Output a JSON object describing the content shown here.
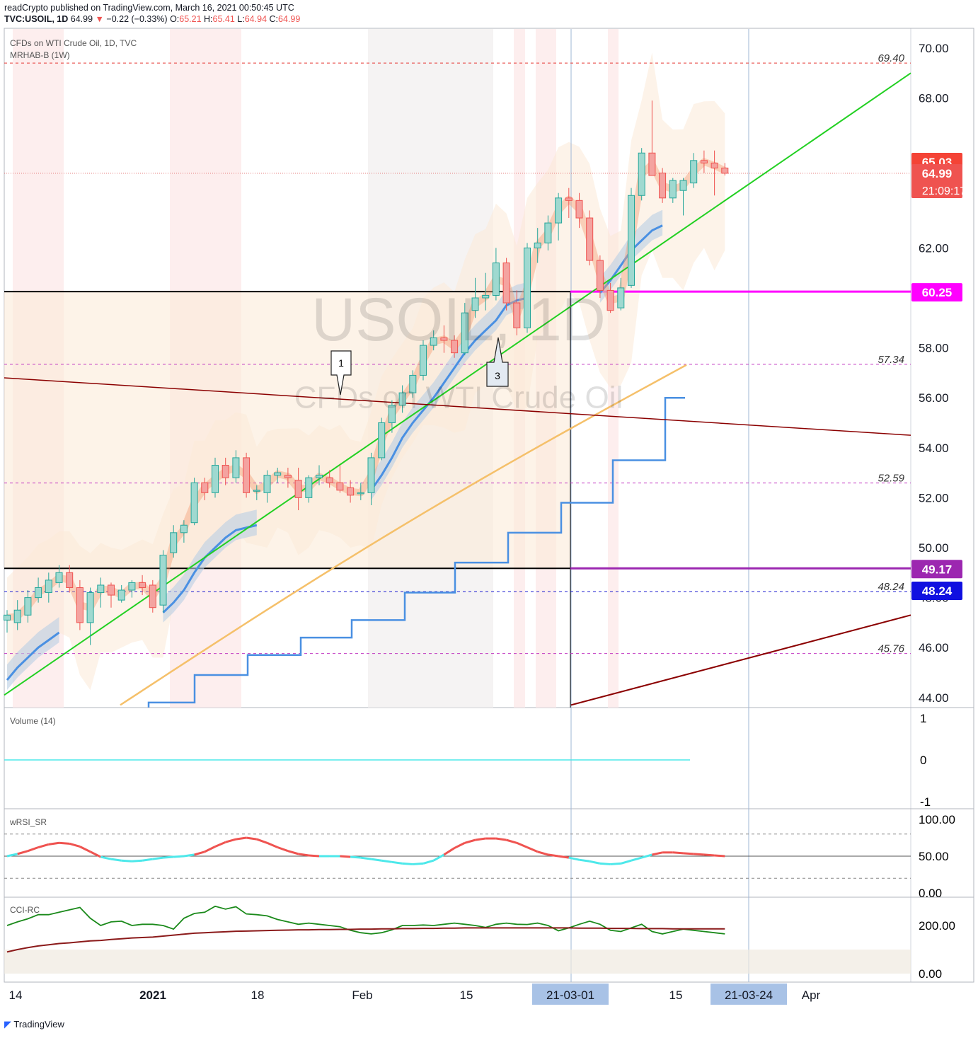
{
  "header": {
    "publisher_line": "readCrypto published on TradingView.com, March 16, 2021 00:50:45 UTC",
    "symbol": "TVC:USOIL, 1D",
    "last": "64.99",
    "change_arrow": "▼",
    "change": "−0.22 (−0.33%)",
    "o_label": "O:",
    "o": "65.21",
    "h_label": "H:",
    "h": "65.41",
    "l_label": "L:",
    "l": "64.94",
    "c_label": "C:",
    "c": "64.99"
  },
  "main_pane": {
    "title": "CFDs on WTI Crude Oil, 1D, TVC",
    "indicator": "MRHAB-B (1W)",
    "watermark_symbol": "USOIL, 1D",
    "watermark_name": "CFDs on WTI Crude Oil",
    "callouts": [
      "1",
      "3"
    ]
  },
  "volume_pane": {
    "title": "Volume (14)"
  },
  "wrsi_pane": {
    "title": "wRSI_SR"
  },
  "cci_pane": {
    "title": "CCI-RC"
  },
  "footer": {
    "brand": "TradingView"
  },
  "colors": {
    "bull": "#26a69a",
    "bear": "#ef5350",
    "trend_green": "#22d022",
    "magenta": "#ff00ff",
    "purple": "#9c27b0",
    "blue_label": "#1010e0",
    "dark_red": "#8b0000",
    "blue_line": "#4a90e2",
    "orange_ma": "#f5c06a",
    "cyan": "#4de8ea"
  },
  "chart_data": [
    {
      "type": "candlestick",
      "title": "CFDs on WTI Crude Oil, 1D, TVC",
      "x_tick_labels": [
        "14",
        "2021",
        "18",
        "Feb",
        "15",
        "21-03-01",
        "15",
        "21-03-24",
        "Apr"
      ],
      "y_ticks": [
        44.0,
        46.0,
        48.0,
        50.0,
        52.0,
        54.0,
        56.0,
        58.0,
        60.0,
        62.0,
        64.0,
        66.0,
        68.0,
        70.0
      ],
      "y_tick_labels": [
        "44.00",
        "46.00",
        "48.00",
        "50.00",
        "52.00",
        "54.00",
        "56.00",
        "58.00",
        "62.00",
        "68.00",
        "70.00"
      ],
      "ylim": [
        43.6,
        70.6
      ],
      "candles": [
        {
          "o": 47.1,
          "h": 47.5,
          "l": 46.6,
          "c": 47.3
        },
        {
          "o": 47.0,
          "h": 47.9,
          "l": 46.7,
          "c": 47.5
        },
        {
          "o": 47.3,
          "h": 48.3,
          "l": 47.0,
          "c": 48.0
        },
        {
          "o": 48.0,
          "h": 48.8,
          "l": 47.8,
          "c": 48.4
        },
        {
          "o": 48.2,
          "h": 49.0,
          "l": 47.8,
          "c": 48.7
        },
        {
          "o": 48.6,
          "h": 49.3,
          "l": 48.4,
          "c": 49.0
        },
        {
          "o": 49.0,
          "h": 49.3,
          "l": 48.2,
          "c": 48.4
        },
        {
          "o": 48.4,
          "h": 48.7,
          "l": 46.7,
          "c": 47.0
        },
        {
          "o": 47.0,
          "h": 48.4,
          "l": 46.1,
          "c": 48.2
        },
        {
          "o": 48.2,
          "h": 48.8,
          "l": 47.6,
          "c": 48.5
        },
        {
          "o": 48.5,
          "h": 48.6,
          "l": 47.6,
          "c": 48.1
        },
        {
          "o": 47.9,
          "h": 48.5,
          "l": 47.8,
          "c": 48.3
        },
        {
          "o": 48.3,
          "h": 48.7,
          "l": 48.0,
          "c": 48.6
        },
        {
          "o": 48.6,
          "h": 48.9,
          "l": 48.1,
          "c": 48.4
        },
        {
          "o": 48.5,
          "h": 48.7,
          "l": 47.4,
          "c": 47.6
        },
        {
          "o": 47.7,
          "h": 49.9,
          "l": 47.4,
          "c": 49.7
        },
        {
          "o": 49.8,
          "h": 50.9,
          "l": 49.6,
          "c": 50.6
        },
        {
          "o": 50.6,
          "h": 51.1,
          "l": 50.2,
          "c": 50.9
        },
        {
          "o": 51.0,
          "h": 52.8,
          "l": 50.9,
          "c": 52.6
        },
        {
          "o": 52.6,
          "h": 52.8,
          "l": 51.9,
          "c": 52.2
        },
        {
          "o": 52.2,
          "h": 53.6,
          "l": 52.0,
          "c": 53.3
        },
        {
          "o": 53.3,
          "h": 53.6,
          "l": 52.5,
          "c": 52.8
        },
        {
          "o": 52.8,
          "h": 53.9,
          "l": 52.6,
          "c": 53.6
        },
        {
          "o": 53.6,
          "h": 53.8,
          "l": 52.0,
          "c": 52.2
        },
        {
          "o": 52.3,
          "h": 52.5,
          "l": 51.9,
          "c": 52.3
        },
        {
          "o": 52.2,
          "h": 53.1,
          "l": 51.8,
          "c": 52.9
        },
        {
          "o": 52.9,
          "h": 53.2,
          "l": 52.6,
          "c": 53.0
        },
        {
          "o": 52.9,
          "h": 53.2,
          "l": 52.4,
          "c": 52.8
        },
        {
          "o": 52.7,
          "h": 53.2,
          "l": 51.5,
          "c": 52.0
        },
        {
          "o": 52.0,
          "h": 52.9,
          "l": 51.8,
          "c": 52.8
        },
        {
          "o": 52.8,
          "h": 53.3,
          "l": 52.5,
          "c": 52.9
        },
        {
          "o": 52.8,
          "h": 53.1,
          "l": 52.4,
          "c": 52.6
        },
        {
          "o": 52.6,
          "h": 53.3,
          "l": 52.2,
          "c": 52.3
        },
        {
          "o": 52.4,
          "h": 52.7,
          "l": 51.8,
          "c": 52.1
        },
        {
          "o": 52.2,
          "h": 52.6,
          "l": 51.9,
          "c": 52.2
        },
        {
          "o": 52.2,
          "h": 53.8,
          "l": 51.7,
          "c": 53.6
        },
        {
          "o": 53.6,
          "h": 55.2,
          "l": 53.5,
          "c": 55.0
        },
        {
          "o": 55.0,
          "h": 55.9,
          "l": 54.6,
          "c": 55.7
        },
        {
          "o": 55.7,
          "h": 56.5,
          "l": 55.4,
          "c": 56.2
        },
        {
          "o": 56.2,
          "h": 57.1,
          "l": 56.0,
          "c": 56.9
        },
        {
          "o": 56.9,
          "h": 58.3,
          "l": 56.7,
          "c": 58.1
        },
        {
          "o": 58.1,
          "h": 58.7,
          "l": 57.9,
          "c": 58.4
        },
        {
          "o": 58.4,
          "h": 58.9,
          "l": 57.8,
          "c": 58.3
        },
        {
          "o": 58.3,
          "h": 58.5,
          "l": 57.6,
          "c": 57.8
        },
        {
          "o": 57.8,
          "h": 59.8,
          "l": 57.7,
          "c": 59.4
        },
        {
          "o": 59.5,
          "h": 60.8,
          "l": 59.2,
          "c": 60.0
        },
        {
          "o": 60.0,
          "h": 61.0,
          "l": 59.5,
          "c": 60.1
        },
        {
          "o": 60.1,
          "h": 62.0,
          "l": 59.9,
          "c": 61.4
        },
        {
          "o": 61.4,
          "h": 61.6,
          "l": 59.5,
          "c": 59.8
        },
        {
          "o": 59.8,
          "h": 60.3,
          "l": 58.5,
          "c": 58.8
        },
        {
          "o": 58.8,
          "h": 62.2,
          "l": 58.6,
          "c": 62.0
        },
        {
          "o": 62.0,
          "h": 62.8,
          "l": 61.4,
          "c": 62.2
        },
        {
          "o": 62.2,
          "h": 63.3,
          "l": 61.9,
          "c": 63.0
        },
        {
          "o": 63.0,
          "h": 64.2,
          "l": 62.3,
          "c": 64.0
        },
        {
          "o": 64.0,
          "h": 64.4,
          "l": 63.2,
          "c": 63.9
        },
        {
          "o": 63.9,
          "h": 64.2,
          "l": 62.8,
          "c": 63.2
        },
        {
          "o": 63.2,
          "h": 63.5,
          "l": 61.3,
          "c": 61.5
        },
        {
          "o": 61.5,
          "h": 61.7,
          "l": 60.0,
          "c": 60.3
        },
        {
          "o": 60.3,
          "h": 60.6,
          "l": 59.4,
          "c": 59.5
        },
        {
          "o": 59.6,
          "h": 60.8,
          "l": 59.5,
          "c": 60.4
        },
        {
          "o": 60.5,
          "h": 64.4,
          "l": 60.4,
          "c": 64.1
        },
        {
          "o": 64.1,
          "h": 66.0,
          "l": 63.9,
          "c": 65.8
        },
        {
          "o": 65.8,
          "h": 67.9,
          "l": 64.9,
          "c": 64.9
        },
        {
          "o": 65.0,
          "h": 65.2,
          "l": 63.8,
          "c": 64.0
        },
        {
          "o": 64.0,
          "h": 64.8,
          "l": 63.8,
          "c": 64.7
        },
        {
          "o": 64.3,
          "h": 64.8,
          "l": 63.3,
          "c": 64.7
        },
        {
          "o": 64.6,
          "h": 65.8,
          "l": 64.4,
          "c": 65.5
        },
        {
          "o": 65.5,
          "h": 65.9,
          "l": 65.0,
          "c": 65.4
        },
        {
          "o": 65.4,
          "h": 65.9,
          "l": 64.1,
          "c": 65.2
        },
        {
          "o": 65.2,
          "h": 65.4,
          "l": 64.9,
          "c": 64.99
        }
      ],
      "horizontal_levels": [
        {
          "value": 69.4,
          "label": "69.40"
        },
        {
          "value": 57.34,
          "label": "57.34"
        },
        {
          "value": 52.59,
          "label": "52.59"
        },
        {
          "value": 48.24,
          "label": "48.24"
        },
        {
          "value": 45.76,
          "label": "45.76"
        }
      ],
      "price_labels": [
        {
          "value": 65.03,
          "label": "65.03"
        },
        {
          "value": 64.99,
          "label": "64.99",
          "sub": "21:09:17"
        },
        {
          "value": 60.25,
          "label": "60.25"
        },
        {
          "value": 49.17,
          "label": "49.17"
        },
        {
          "value": 48.24,
          "label": "48.24"
        }
      ]
    },
    {
      "type": "line",
      "title": "Volume (14)",
      "y_ticks": [
        1,
        0,
        -1
      ],
      "y_tick_labels": [
        "1",
        "0",
        "-1"
      ],
      "value": 0
    },
    {
      "type": "line",
      "title": "wRSI_SR",
      "y_ticks": [
        100.0,
        50.0,
        0.0
      ],
      "y_tick_labels": [
        "100.00",
        "50.00",
        "0.00"
      ],
      "levels": [
        80,
        20
      ],
      "series": [
        {
          "values": [
            50,
            53,
            57,
            62,
            66,
            68,
            67,
            63,
            56,
            49,
            46,
            44,
            43,
            44,
            46,
            48,
            49,
            50,
            52,
            56,
            63,
            69,
            73,
            75,
            73,
            68,
            62,
            57,
            53,
            51,
            50,
            50,
            50,
            49,
            48,
            46,
            44,
            42,
            40,
            39,
            40,
            44,
            52,
            61,
            68,
            72,
            74,
            74,
            72,
            68,
            62,
            56,
            52,
            50,
            48,
            45,
            43,
            40,
            39,
            40,
            44,
            48,
            52,
            55,
            55,
            54,
            53,
            52,
            51,
            50
          ]
        }
      ]
    },
    {
      "type": "line",
      "title": "CCI-RC",
      "y_ticks": [
        200.0,
        0.0
      ],
      "y_tick_labels": [
        "200.00",
        "0.00"
      ],
      "series": [
        {
          "values": [
            200,
            215,
            228,
            245,
            245,
            255,
            265,
            275,
            230,
            200,
            215,
            218,
            200,
            205,
            205,
            200,
            185,
            230,
            250,
            255,
            280,
            268,
            278,
            248,
            245,
            240,
            225,
            215,
            205,
            210,
            205,
            200,
            195,
            180,
            170,
            165,
            170,
            182,
            200,
            200,
            202,
            200,
            205,
            210,
            205,
            200,
            192,
            205,
            210,
            205,
            204,
            210,
            200,
            178,
            190,
            205,
            218,
            205,
            180,
            175,
            190,
            205,
            175,
            165,
            175,
            185,
            180,
            175,
            170,
            165
          ]
        },
        {
          "values": [
            90,
            100,
            108,
            115,
            120,
            125,
            128,
            132,
            136,
            138,
            142,
            145,
            148,
            150,
            152,
            156,
            160,
            164,
            168,
            170,
            172,
            174,
            176,
            177,
            178,
            179,
            180,
            181,
            182,
            182,
            183,
            183,
            184,
            184,
            185,
            185,
            186,
            186,
            187,
            187,
            188,
            188,
            189,
            189,
            190,
            190,
            190,
            190,
            190,
            190,
            190,
            190,
            190,
            190,
            190,
            189,
            189,
            189,
            188,
            188,
            188,
            187,
            187,
            187,
            186,
            186,
            186,
            186,
            186,
            186
          ]
        }
      ]
    }
  ]
}
